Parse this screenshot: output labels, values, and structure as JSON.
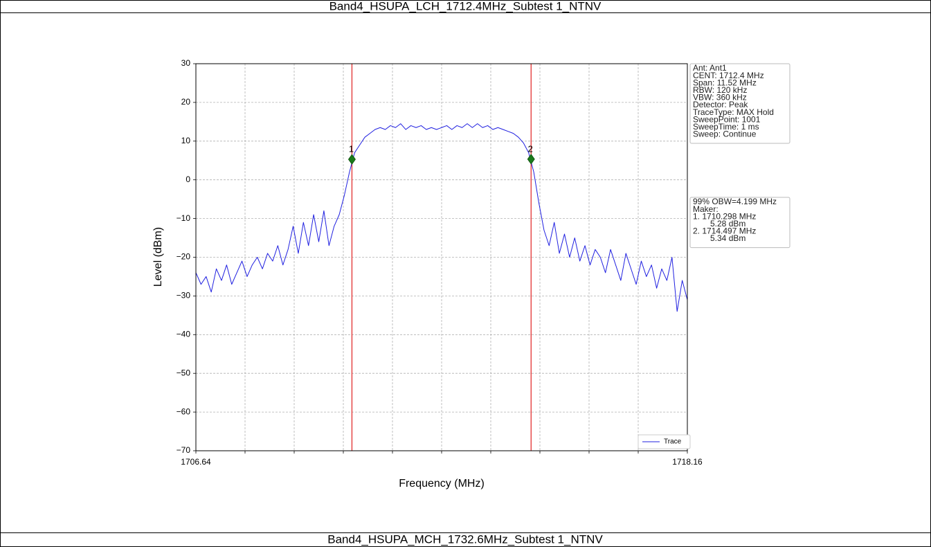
{
  "header": {
    "title": "Band4_HSUPA_LCH_1712.4MHz_Subtest 1_NTNV"
  },
  "footer": {
    "title": "Band4_HSUPA_MCH_1732.6MHz_Subtest 1_NTNV"
  },
  "chart_data": {
    "type": "line",
    "x_label": "Frequency (MHz)",
    "y_label": "Level (dBm)",
    "xlim": [
      1706.64,
      1718.16
    ],
    "ylim": [
      -70,
      30
    ],
    "xticks": [
      1706.64,
      1718.16
    ],
    "xminor_ticks": [
      1707.792,
      1708.944,
      1710.096,
      1711.248,
      1712.4,
      1713.552,
      1714.704,
      1715.856,
      1717.008
    ],
    "yticks": [
      30,
      20,
      10,
      0,
      {
        "value": -10,
        "label": "−10"
      },
      {
        "value": -20,
        "label": "−20"
      },
      {
        "value": -30,
        "label": "−30"
      },
      {
        "value": -40,
        "label": "−40"
      },
      {
        "value": -50,
        "label": "−50"
      },
      {
        "value": -60,
        "label": "−60"
      },
      {
        "value": -70,
        "label": "−70"
      }
    ],
    "grid": true,
    "legend": "lower right",
    "series": [
      {
        "name": "Trace",
        "color": "#1f1fe0",
        "x": [
          1706.64,
          1706.76,
          1706.88,
          1707.0,
          1707.12,
          1707.24,
          1707.36,
          1707.48,
          1707.6,
          1707.72,
          1707.84,
          1707.96,
          1708.08,
          1708.2,
          1708.32,
          1708.44,
          1708.56,
          1708.68,
          1708.8,
          1708.92,
          1709.04,
          1709.16,
          1709.28,
          1709.4,
          1709.52,
          1709.64,
          1709.76,
          1709.88,
          1710.0,
          1710.12,
          1710.24,
          1710.36,
          1710.48,
          1710.6,
          1710.72,
          1710.84,
          1710.96,
          1711.08,
          1711.2,
          1711.32,
          1711.44,
          1711.56,
          1711.68,
          1711.8,
          1711.92,
          1712.04,
          1712.16,
          1712.28,
          1712.4,
          1712.52,
          1712.64,
          1712.76,
          1712.88,
          1713.0,
          1713.12,
          1713.24,
          1713.36,
          1713.48,
          1713.6,
          1713.72,
          1713.84,
          1713.96,
          1714.08,
          1714.2,
          1714.32,
          1714.44,
          1714.56,
          1714.68,
          1714.8,
          1714.92,
          1715.04,
          1715.16,
          1715.28,
          1715.4,
          1715.52,
          1715.64,
          1715.76,
          1715.88,
          1716.0,
          1716.12,
          1716.24,
          1716.36,
          1716.48,
          1716.6,
          1716.72,
          1716.84,
          1716.96,
          1717.08,
          1717.2,
          1717.32,
          1717.44,
          1717.56,
          1717.68,
          1717.8,
          1717.92,
          1718.04,
          1718.16
        ],
        "values": [
          -24,
          -27,
          -25,
          -29,
          -23,
          -26,
          -22,
          -27,
          -24,
          -21,
          -25,
          -22,
          -20,
          -23,
          -19,
          -21,
          -17,
          -22,
          -18,
          -12,
          -19,
          -11,
          -17,
          -9,
          -16,
          -8,
          -17,
          -12,
          -9,
          -4,
          2,
          7,
          9,
          11,
          12,
          13,
          13.5,
          13,
          14,
          13.5,
          14.5,
          13,
          14,
          13.5,
          14,
          13,
          13.5,
          13,
          13.5,
          14,
          13,
          14,
          13.5,
          14.5,
          13.5,
          14.5,
          13.5,
          14,
          13,
          13.5,
          13,
          12.5,
          12,
          11,
          9.5,
          7,
          2,
          -6,
          -13,
          -17,
          -11,
          -19,
          -14,
          -20,
          -15,
          -21,
          -17,
          -22,
          -18,
          -20,
          -24,
          -18,
          -22,
          -26,
          -19,
          -23,
          -27,
          -21,
          -25,
          -22,
          -28,
          -23,
          -26,
          -20,
          -34,
          -26,
          -31
        ]
      }
    ],
    "markers": [
      {
        "label": "1",
        "x": 1710.298,
        "y": 5.28,
        "color": "#e02020"
      },
      {
        "label": "2",
        "x": 1714.497,
        "y": 5.34,
        "color": "#e02020"
      }
    ],
    "settings_box": [
      "Ant: Ant1",
      "CENT: 1712.4 MHz",
      "Span: 11.52 MHz",
      "RBW: 120 kHz",
      "VBW: 360 kHz",
      "Detector: Peak",
      "TraceType: MAX Hold",
      "SweepPoint: 1001",
      "SweepTime: 1 ms",
      "Sweep: Continue"
    ],
    "result_box": {
      "obw": "99% OBW=4.199 MHz",
      "marker_title": "Maker:",
      "entries": [
        {
          "freq": "1. 1710.298 MHz",
          "level": "5.28 dBm"
        },
        {
          "freq": "2. 1714.497 MHz",
          "level": "5.34 dBm"
        }
      ]
    }
  }
}
